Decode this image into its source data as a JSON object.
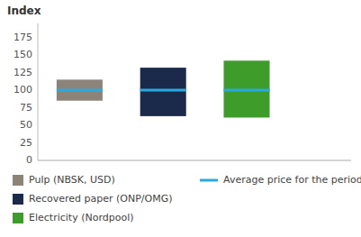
{
  "chart_data": {
    "type": "range_bar",
    "title": "Index",
    "series": [
      {
        "name": "Pulp (NBSK, USD)",
        "color": "#8c8479",
        "low": 85,
        "high": 115,
        "average": 100
      },
      {
        "name": "Recovered paper (ONP/OMG)",
        "color": "#1b2a4a",
        "low": 63,
        "high": 132,
        "average": 100
      },
      {
        "name": "Electricity (Nordpool)",
        "color": "#3d9c2a",
        "low": 61,
        "high": 142,
        "average": 100
      }
    ],
    "average": {
      "name": "Average price for the period",
      "color": "#29abe2"
    },
    "ylim": [
      0,
      195
    ],
    "yticks": [
      0,
      25,
      50,
      75,
      100,
      125,
      150,
      175
    ],
    "grid": false,
    "tick_labels": "y"
  }
}
